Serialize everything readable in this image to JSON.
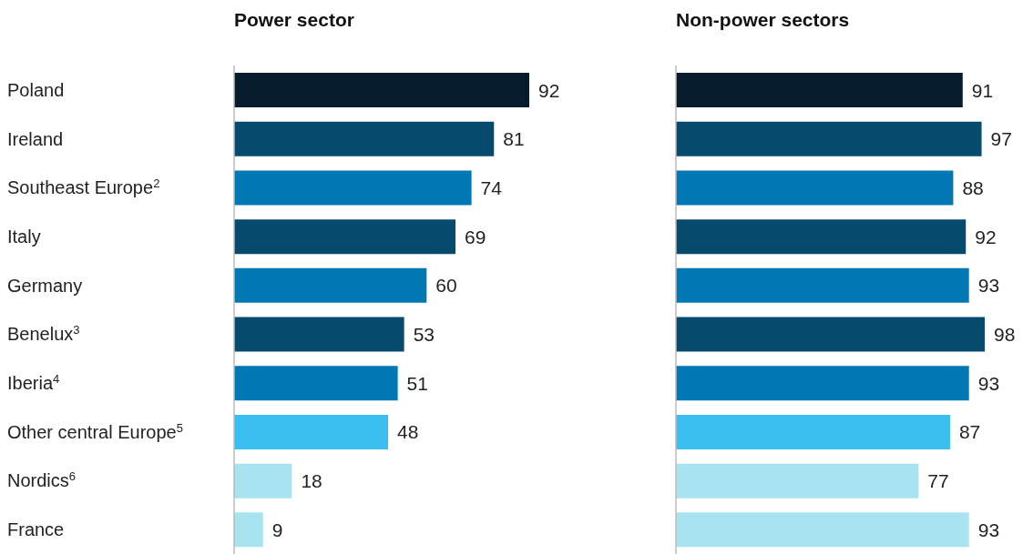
{
  "chart_data": [
    {
      "type": "bar",
      "orientation": "horizontal",
      "title": "Power sector",
      "categories": [
        "Poland",
        "Ireland",
        "Southeast Europe$^{2}$",
        "Italy",
        "Germany",
        "Benelux$^{3}$",
        "Iberia$^{4}$",
        "Other central Europe$^{5}$",
        "Nordics$^{6}$",
        "France"
      ],
      "values": [
        92,
        81,
        74,
        69,
        60,
        53,
        51,
        48,
        18,
        9
      ],
      "colors": [
        "#061c2c",
        "#064a6e",
        "#0078b4",
        "#064a6e",
        "#0078b4",
        "#064a6e",
        "#0078b4",
        "#3bbff0",
        "#a8e4f0",
        "#a8e4f0"
      ],
      "data_labels": true,
      "tick_labels": "y"
    },
    {
      "type": "bar",
      "orientation": "horizontal",
      "title": "Non-power sectors",
      "categories": [
        null,
        null,
        null,
        null,
        null,
        null,
        null,
        null,
        null,
        null
      ],
      "values": [
        91,
        97,
        88,
        92,
        93,
        98,
        93,
        87,
        77,
        93
      ],
      "colors": [
        "#061c2c",
        "#064a6e",
        "#0078b4",
        "#064a6e",
        "#0078b4",
        "#064a6e",
        "#0078b4",
        "#3bbff0",
        "#a8e4f0",
        "#a8e4f0"
      ],
      "data_labels": true,
      "tick_labels": false
    }
  ]
}
